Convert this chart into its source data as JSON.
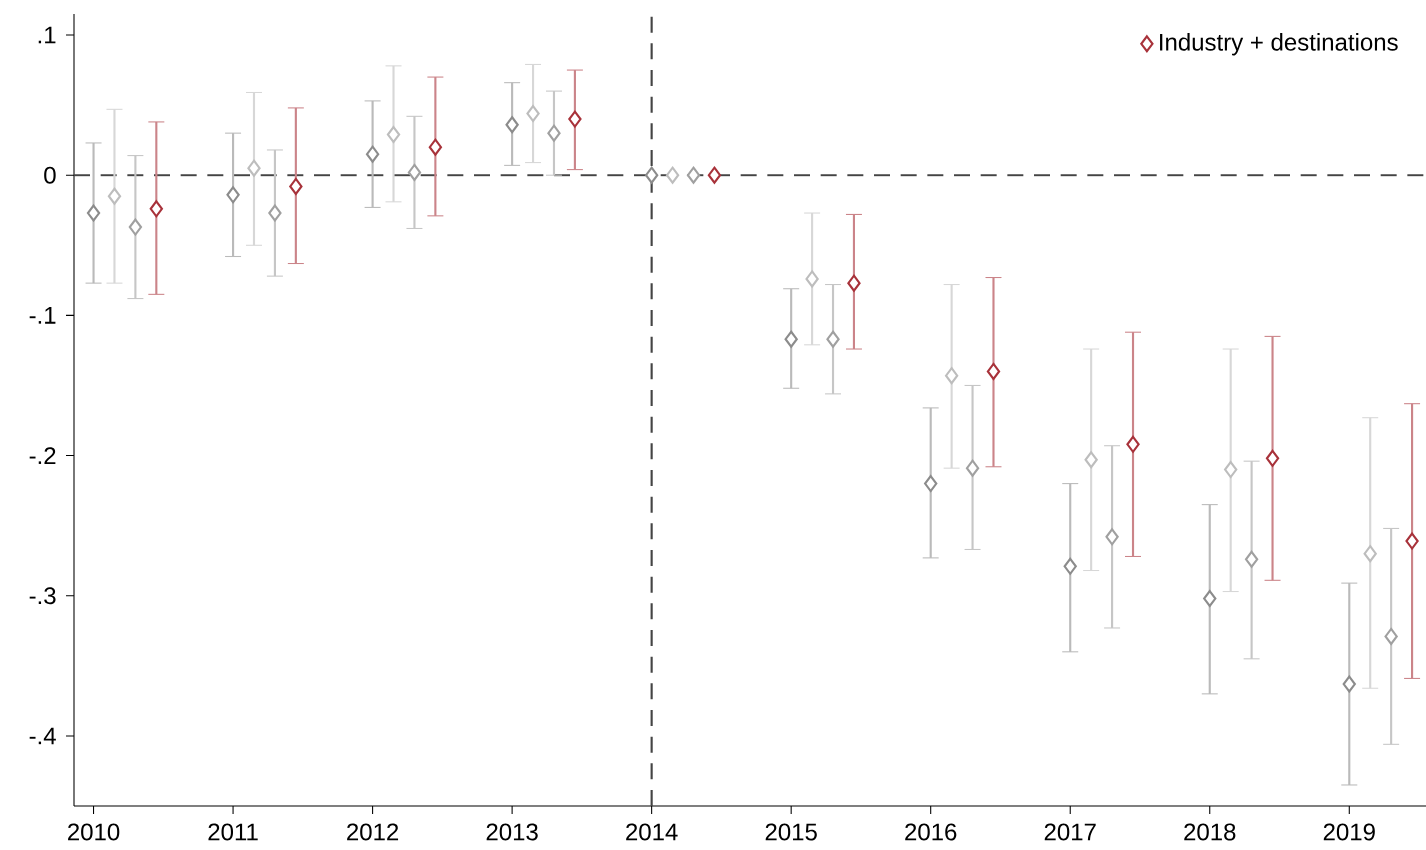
{
  "chart_data": {
    "type": "scatter",
    "xlim": [
      2009.86,
      2019.55
    ],
    "ylim": [
      -0.45,
      0.115
    ],
    "xticks": [
      2010,
      2011,
      2012,
      2013,
      2014,
      2015,
      2016,
      2017,
      2018,
      2019
    ],
    "yticks": [
      {
        "value": 0.1,
        "label": ".1"
      },
      0,
      {
        "value": -0.1,
        "label": "-.1"
      },
      {
        "value": -0.2,
        "label": "-.2"
      },
      {
        "value": -0.3,
        "label": "-.3"
      },
      {
        "value": -0.4,
        "label": "-.4"
      }
    ],
    "marker": "diamond",
    "grid": false,
    "legend": "top right",
    "ref_lines": [
      {
        "axis": "y",
        "value": 0,
        "line_style": "dashed",
        "color": "#444444"
      },
      {
        "axis": "x",
        "value": 2014,
        "line_style": "dashed",
        "color": "#444444"
      }
    ],
    "series": [
      {
        "color": "#8c8c8c",
        "x": [
          2010,
          2011,
          2012,
          2013,
          2014,
          2015,
          2016,
          2017,
          2018,
          2019
        ],
        "values": [
          -0.027,
          -0.014,
          0.015,
          0.036,
          0,
          -0.117,
          -0.22,
          -0.279,
          -0.302,
          -0.363
        ],
        "errors": [
          [
            -0.077,
            0.023
          ],
          [
            -0.058,
            0.03
          ],
          [
            -0.023,
            0.053
          ],
          [
            0.007,
            0.066
          ],
          null,
          [
            -0.152,
            -0.081
          ],
          [
            -0.273,
            -0.166
          ],
          [
            -0.34,
            -0.22
          ],
          [
            -0.37,
            -0.235
          ],
          [
            -0.435,
            -0.291
          ]
        ]
      },
      {
        "color": "#bdbdbd",
        "x": [
          2010.15,
          2011.15,
          2012.15,
          2013.15,
          2014.15,
          2015.15,
          2016.15,
          2017.15,
          2018.15,
          2019.15
        ],
        "values": [
          -0.015,
          0.005,
          0.029,
          0.044,
          0,
          -0.074,
          -0.143,
          -0.203,
          -0.21,
          -0.27
        ],
        "errors": [
          [
            -0.077,
            0.047
          ],
          [
            -0.05,
            0.059
          ],
          [
            -0.019,
            0.078
          ],
          [
            0.009,
            0.079
          ],
          null,
          [
            -0.121,
            -0.027
          ],
          [
            -0.209,
            -0.078
          ],
          [
            -0.282,
            -0.124
          ],
          [
            -0.297,
            -0.124
          ],
          [
            -0.366,
            -0.173
          ]
        ]
      },
      {
        "color": "#a0a0a0",
        "x": [
          2010.3,
          2011.3,
          2012.3,
          2013.3,
          2014.3,
          2015.3,
          2016.3,
          2017.3,
          2018.3,
          2019.3
        ],
        "values": [
          -0.037,
          -0.027,
          0.002,
          0.03,
          0,
          -0.117,
          -0.209,
          -0.258,
          -0.274,
          -0.329
        ],
        "errors": [
          [
            -0.088,
            0.014
          ],
          [
            -0.072,
            0.018
          ],
          [
            -0.038,
            0.042
          ],
          [
            0.0,
            0.06
          ],
          null,
          [
            -0.156,
            -0.078
          ],
          [
            -0.267,
            -0.15
          ],
          [
            -0.323,
            -0.193
          ],
          [
            -0.345,
            -0.204
          ],
          [
            -0.406,
            -0.252
          ]
        ]
      },
      {
        "name": "Industry + destinations",
        "color": "#a8323a",
        "x": [
          2010.45,
          2011.45,
          2012.45,
          2013.45,
          2014.45,
          2015.45,
          2016.45,
          2017.45,
          2018.45,
          2019.45
        ],
        "values": [
          -0.024,
          -0.008,
          0.02,
          0.04,
          0,
          -0.077,
          -0.14,
          -0.192,
          -0.202,
          -0.261
        ],
        "errors": [
          [
            -0.085,
            0.038
          ],
          [
            -0.063,
            0.048
          ],
          [
            -0.029,
            0.07
          ],
          [
            0.004,
            0.075
          ],
          null,
          [
            -0.124,
            -0.028
          ],
          [
            -0.208,
            -0.073
          ],
          [
            -0.272,
            -0.112
          ],
          [
            -0.289,
            -0.115
          ],
          [
            -0.359,
            -0.163
          ]
        ]
      }
    ]
  }
}
